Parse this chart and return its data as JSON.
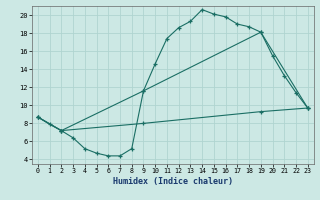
{
  "xlabel": "Humidex (Indice chaleur)",
  "bg_color": "#cce8e4",
  "grid_color": "#b0d4d0",
  "line_color": "#1a6e64",
  "xlim": [
    -0.5,
    23.5
  ],
  "ylim": [
    3.5,
    21.0
  ],
  "yticks": [
    4,
    6,
    8,
    10,
    12,
    14,
    16,
    18,
    20
  ],
  "xticks": [
    0,
    1,
    2,
    3,
    4,
    5,
    6,
    7,
    8,
    9,
    10,
    11,
    12,
    13,
    14,
    15,
    16,
    17,
    18,
    19,
    20,
    21,
    22,
    23
  ],
  "line1_x": [
    0,
    1,
    2,
    3,
    4,
    5,
    6,
    7,
    8,
    9,
    10,
    11,
    12,
    13,
    14,
    15,
    16,
    17,
    18,
    19,
    20,
    21,
    22,
    23
  ],
  "line1_y": [
    8.7,
    7.9,
    7.2,
    6.4,
    5.2,
    4.7,
    4.4,
    4.4,
    5.2,
    11.6,
    14.6,
    17.4,
    18.6,
    19.3,
    20.6,
    20.1,
    19.8,
    19.0,
    18.7,
    18.1,
    15.5,
    13.3,
    11.4,
    9.7
  ],
  "line2_x": [
    0,
    2,
    9,
    19,
    23
  ],
  "line2_y": [
    8.7,
    7.2,
    11.6,
    18.1,
    9.7
  ],
  "line3_x": [
    0,
    2,
    9,
    19,
    23
  ],
  "line3_y": [
    8.7,
    7.2,
    8.0,
    9.3,
    9.7
  ]
}
